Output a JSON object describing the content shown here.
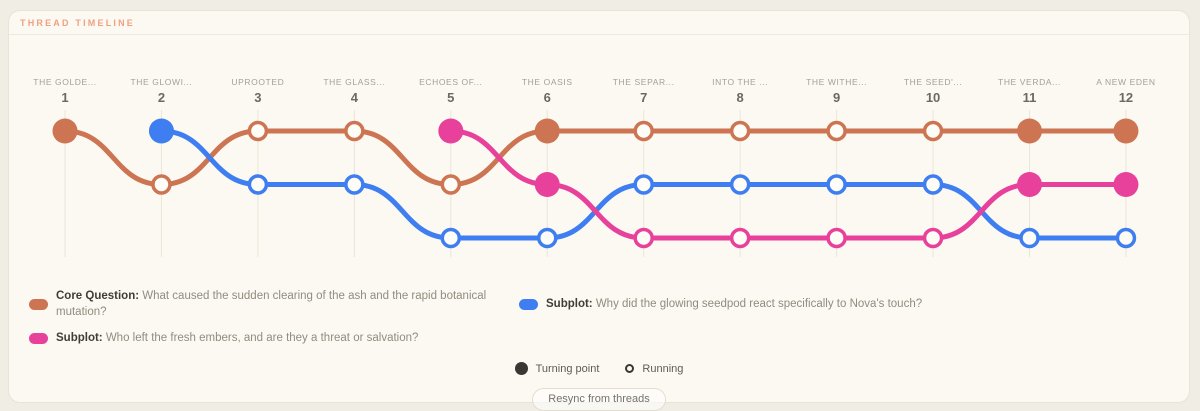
{
  "header": {
    "title": "THREAD TIMELINE"
  },
  "chart_data": {
    "type": "line",
    "variant": "thread-timeline-bump-chart",
    "lanes": 3,
    "legend_position": "bottom-left",
    "grid": "faint vertical column guides",
    "chapters": [
      {
        "number": "1",
        "label": "THE GOLDE..."
      },
      {
        "number": "2",
        "label": "THE GLOWI..."
      },
      {
        "number": "3",
        "label": "UPROOTED"
      },
      {
        "number": "4",
        "label": "THE GLASS..."
      },
      {
        "number": "5",
        "label": "ECHOES OF..."
      },
      {
        "number": "6",
        "label": "THE OASIS"
      },
      {
        "number": "7",
        "label": "THE SEPAR..."
      },
      {
        "number": "8",
        "label": "INTO THE ..."
      },
      {
        "number": "9",
        "label": "THE WITHE..."
      },
      {
        "number": "10",
        "label": "THE SEED'..."
      },
      {
        "number": "11",
        "label": "THE VERDA..."
      },
      {
        "number": "12",
        "label": "A NEW EDEN"
      }
    ],
    "threads": [
      {
        "id": "core-question",
        "kind": "Core Question:",
        "question": "What caused the sudden clearing of the ash and the rapid botanical mutation?",
        "color": "#cd7452",
        "lanes": [
          0,
          1,
          0,
          0,
          1,
          0,
          0,
          0,
          0,
          0,
          0,
          0
        ],
        "states": [
          "turning",
          "running",
          "running",
          "running",
          "running",
          "turning",
          "running",
          "running",
          "running",
          "running",
          "turning",
          "turning"
        ]
      },
      {
        "id": "subplot-seedpod",
        "kind": "Subplot:",
        "question": "Why did the glowing seedpod react specifically to Nova's touch?",
        "color": "#3e7ef0",
        "lanes": [
          null,
          0,
          1,
          1,
          2,
          2,
          1,
          1,
          1,
          1,
          2,
          2
        ],
        "states": [
          null,
          "turning",
          "running",
          "running",
          "running",
          "running",
          "running",
          "running",
          "running",
          "running",
          "running",
          "running"
        ]
      },
      {
        "id": "subplot-embers",
        "kind": "Subplot:",
        "question": "Who left the fresh embers, and are they a threat or salvation?",
        "color": "#e8419b",
        "lanes": [
          null,
          null,
          null,
          null,
          0,
          1,
          2,
          2,
          2,
          2,
          1,
          1
        ],
        "states": [
          null,
          null,
          null,
          null,
          "turning",
          "turning",
          "running",
          "running",
          "running",
          "running",
          "turning",
          "turning"
        ]
      }
    ],
    "point_states": {
      "turning": "Turning point",
      "running": "Running"
    }
  },
  "legend_order": [
    "core-question",
    "subplot-seedpod",
    "subplot-embers"
  ],
  "footer": {
    "turning_label": "Turning point",
    "running_label": "Running",
    "resync_button": "Resync from threads"
  },
  "colors": {
    "page_bg": "#efede4",
    "card_bg": "#fbf9f2",
    "header_title": "#efa183",
    "core_question": "#cd7452",
    "subplot_seedpod": "#3e7ef0",
    "subplot_embers": "#e8419b",
    "turning_point_key": "#3a3733",
    "gridline": "#eae6d9"
  }
}
